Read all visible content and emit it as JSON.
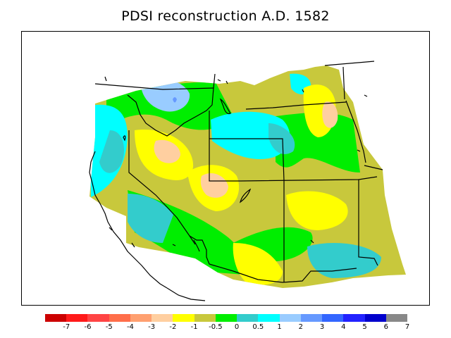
{
  "title": "PDSI reconstruction A.D. 1582",
  "legend": {
    "colors": [
      "#cc0000",
      "#ff1a1a",
      "#ff4444",
      "#ff6e4a",
      "#ffa070",
      "#ffcfa0",
      "#ffff00",
      "#c8c83c",
      "#00ee00",
      "#33cccc",
      "#00ffff",
      "#99ccff",
      "#6699ff",
      "#3366ff",
      "#2222ff",
      "#0000cc",
      "#888888"
    ],
    "labels": [
      "-7",
      "-6",
      "-5",
      "-4",
      "-3",
      "-2",
      "-1",
      "-0.5",
      "0",
      "0.5",
      "1",
      "2",
      "3",
      "4",
      "5",
      "6",
      "7"
    ]
  }
}
